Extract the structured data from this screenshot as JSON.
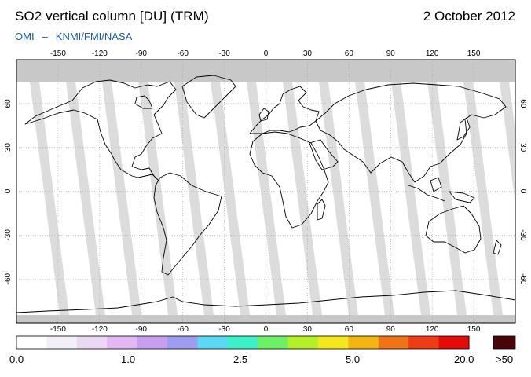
{
  "header": {
    "title": "SO2 vertical column [DU] (TRM)",
    "date": "2 October 2012",
    "source_left": "OMI",
    "source_dash": "–",
    "source_right": "KNMI/FMI/NASA"
  },
  "map": {
    "projection": "equirectangular",
    "lon_ticks": [
      -150,
      -120,
      -90,
      -60,
      -30,
      0,
      30,
      60,
      90,
      120,
      150
    ],
    "lat_ticks": [
      -60,
      -30,
      0,
      30,
      60
    ],
    "lon_range": [
      -180,
      180
    ],
    "lat_range": [
      -90,
      90
    ],
    "no_data_color": "#c8c8c8",
    "orbit_gap_color": "#d6d6d6"
  },
  "colorbar": {
    "colors": [
      "#ffffff",
      "#f4eef8",
      "#ecd8f4",
      "#e2b8f2",
      "#c79ef0",
      "#9c9cf0",
      "#5ad8f4",
      "#3cf0c8",
      "#6cf064",
      "#b4f028",
      "#f4e81c",
      "#f4b414",
      "#f07414",
      "#f03c14",
      "#e60a0a"
    ],
    "overflow_color": "#4a0606",
    "tick_labels": [
      "0.0",
      "1.0",
      "2.5",
      "5.0",
      "20.0"
    ],
    "overflow_label": ">50"
  }
}
